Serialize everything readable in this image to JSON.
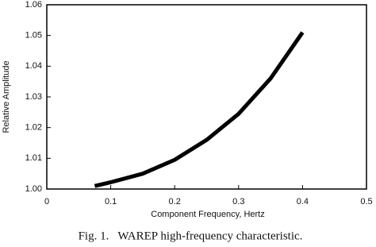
{
  "chart_data": {
    "type": "line",
    "caption": "Fig. 1.   WAREP high-frequency characteristic.",
    "xlabel": "Component Frequency, Hertz",
    "ylabel": "Relative Amplitude",
    "x": [
      0.075,
      0.1,
      0.15,
      0.2,
      0.25,
      0.3,
      0.35,
      0.4
    ],
    "series": [
      {
        "color": "#000000",
        "values": [
          1.001,
          1.0022,
          1.005,
          1.0095,
          1.016,
          1.0245,
          1.036,
          1.051
        ]
      }
    ],
    "xlim": [
      0,
      0.5
    ],
    "xticks": [
      0,
      0.1,
      0.2,
      0.3,
      0.4,
      0.5
    ],
    "ylim": [
      1,
      1.06
    ],
    "yticks": [
      {
        "value": 1,
        "label": "1.00"
      },
      1.01,
      1.02,
      1.03,
      1.04,
      1.05,
      1.06
    ]
  }
}
